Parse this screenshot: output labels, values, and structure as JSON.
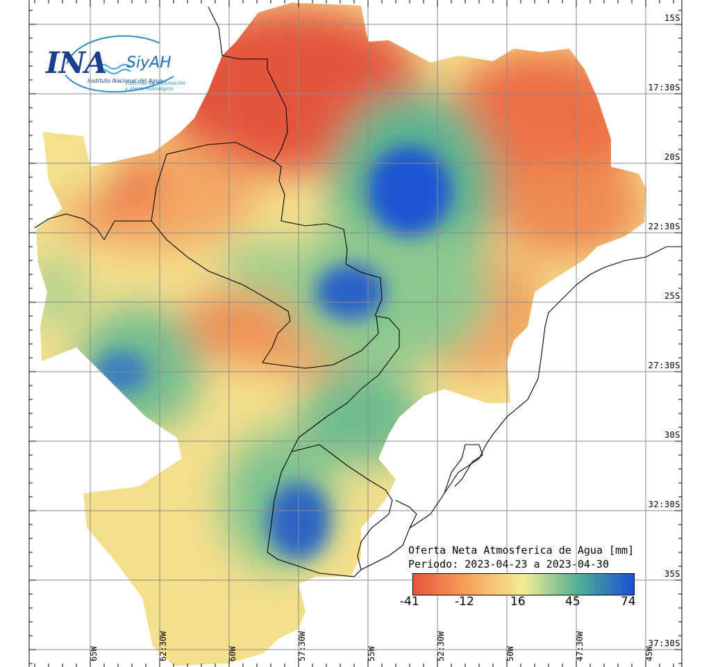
{
  "logo": {
    "brand": "INA",
    "product": "SiyAH",
    "org": "Instituto Nacional del Agua",
    "system": "Sistemas de Información y Alerta Hidrológico"
  },
  "legend": {
    "title": "Oferta Neta Atmosferica de Agua [mm]",
    "period": "Periodo: 2023-04-23 a 2023-04-30",
    "ticks": [
      "-41",
      "-12",
      "16",
      "45",
      "74"
    ],
    "colors": [
      "#e8553b",
      "#f6a35a",
      "#f4ec97",
      "#4fae93",
      "#1a4fd8"
    ]
  },
  "grid": {
    "lat_labels": [
      "15S",
      "17:30S",
      "20S",
      "22:30S",
      "25S",
      "27:30S",
      "30S",
      "32:30S",
      "35S",
      "37:30S"
    ],
    "lon_labels": [
      "65W",
      "62:30W",
      "60W",
      "57:30W",
      "55W",
      "52:30W",
      "50W",
      "47:30W",
      "45W"
    ]
  },
  "chart_data": {
    "type": "heatmap",
    "title": "Oferta Neta Atmosferica de Agua [mm]",
    "subtitle": "Periodo: 2023-04-23 a 2023-04-30",
    "colorbar_range": [
      -41,
      74
    ],
    "colorbar_ticks": [
      -41,
      -12,
      16,
      45,
      74
    ],
    "lat_range": [
      "15S",
      "37:30S"
    ],
    "lon_range": [
      "65W",
      "45W"
    ],
    "features": [
      {
        "label": "max",
        "lat": -21,
        "lon": -51.5,
        "value": 74
      },
      {
        "label": "max",
        "lat": -24.9,
        "lon": -55.7,
        "value": 60
      },
      {
        "label": "max",
        "lat": -33.5,
        "lon": -57.5,
        "value": 60
      },
      {
        "label": "max",
        "lat": -27.5,
        "lon": -63.5,
        "value": 50
      },
      {
        "label": "min",
        "lat": -17,
        "lon": -60,
        "value": -41
      },
      {
        "label": "min",
        "lat": -20,
        "lon": -46,
        "value": -30
      }
    ]
  }
}
